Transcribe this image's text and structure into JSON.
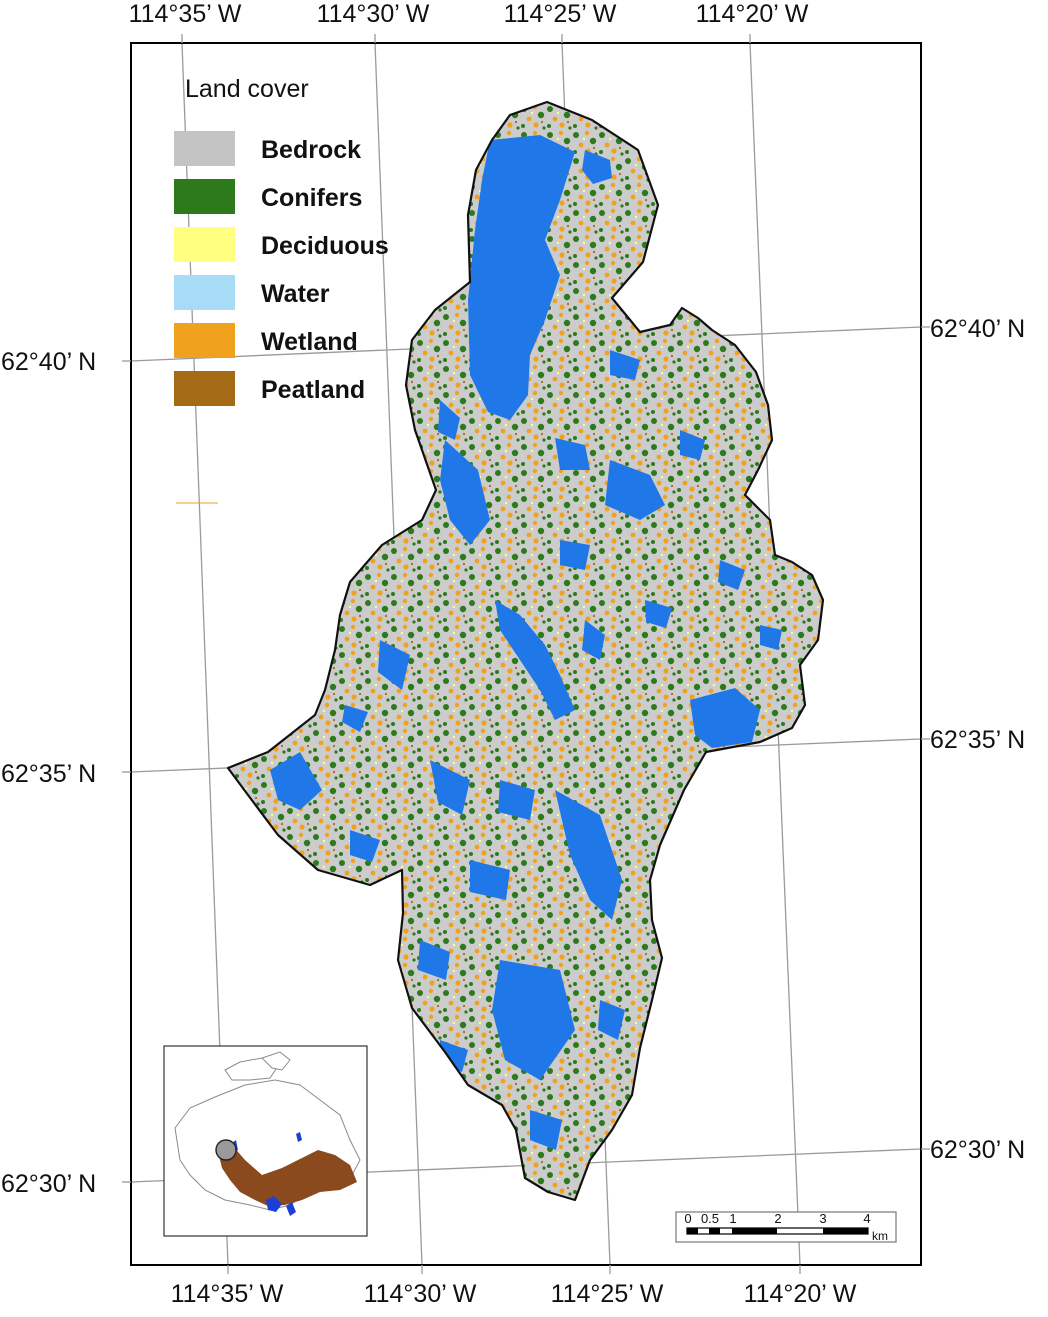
{
  "legend": {
    "title": "Land cover",
    "items": [
      {
        "label": "Bedrock",
        "color": "#c4c4c4"
      },
      {
        "label": "Conifers",
        "color": "#2d7a1c"
      },
      {
        "label": "Deciduous",
        "color": "#ffff80"
      },
      {
        "label": "Water",
        "color": "#a6dcf5"
      },
      {
        "label": "Wetland",
        "color": "#f0a21e"
      },
      {
        "label": "Peatland",
        "color": "#a56a14"
      }
    ]
  },
  "map_colors": {
    "water_on_map": "#1f77e8",
    "boundary": "#111111",
    "graticule": "#9a9a9a"
  },
  "axes": {
    "top_lon": [
      "114°35’ W",
      "114°30’ W",
      "114°25’ W",
      "114°20’ W"
    ],
    "bottom_lon": [
      "114°35’ W",
      "114°30’ W",
      "114°25’ W",
      "114°20’ W"
    ],
    "left_lat": [
      "62°40’ N",
      "62°35’ N",
      "62°30’ N"
    ],
    "right_lat": [
      "62°40’ N",
      "62°35’ N",
      "62°30’ N"
    ]
  },
  "scale_bar": {
    "ticks": [
      "0",
      "0.5",
      "1",
      "2",
      "3",
      "4"
    ],
    "unit": "km"
  },
  "inset": {
    "land_color": "#ffffff",
    "region_color": "#8b4a1e",
    "lakes_color": "#1c3fd6",
    "marker_color": "#9a9a9a"
  }
}
